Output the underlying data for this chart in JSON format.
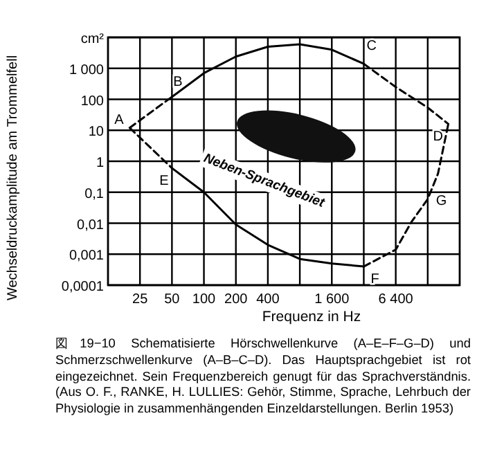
{
  "chart_data": {
    "type": "line",
    "xlabel": "Frequenz in Hz",
    "ylabel": "Wechseldruckamplitude am Trommelfell",
    "log": "xy",
    "grid": true,
    "xlim": [
      12.5,
      25600
    ],
    "xticks": [
      25,
      50,
      100,
      200,
      400,
      {
        "value": 800,
        "label": null
      },
      {
        "value": 1600,
        "label": "1 600"
      },
      {
        "value": 3200,
        "label": null
      },
      {
        "value": 6400,
        "label": "6 400"
      },
      {
        "value": 12800,
        "label": null
      }
    ],
    "ylim": [
      0.0001,
      10000
    ],
    "yticks": [
      {
        "value": 0.0001,
        "label": "0,0001"
      },
      {
        "value": 0.001,
        "label": "0,001"
      },
      {
        "value": 0.01,
        "label": "0,01"
      },
      {
        "value": 0.1,
        "label": "0,1"
      },
      1,
      10,
      100,
      {
        "value": 1000,
        "label": "1 000"
      },
      {
        "value": 10000,
        "label": "cm²"
      }
    ],
    "series": [
      {
        "color": "#000000",
        "line_style": "dashed",
        "x": [
          20,
          50
        ],
        "values": [
          12,
          120
        ]
      },
      {
        "color": "#000000",
        "line_style": "solid",
        "x": [
          50,
          100,
          200,
          400,
          800,
          1600,
          3200
        ],
        "values": [
          120,
          700,
          2400,
          5000,
          6000,
          4000,
          1400
        ]
      },
      {
        "color": "#000000",
        "line_style": "dashed",
        "x": [
          3200,
          6400,
          12800,
          20000
        ],
        "values": [
          1400,
          250,
          54,
          16
        ]
      },
      {
        "color": "#000000",
        "line_style": "dashed",
        "x": [
          20,
          50
        ],
        "values": [
          12,
          0.6
        ]
      },
      {
        "color": "#000000",
        "line_style": "solid",
        "x": [
          50,
          100,
          200,
          400,
          800,
          1600,
          3200
        ],
        "values": [
          0.6,
          0.1,
          0.009,
          0.002,
          0.0007,
          0.0005,
          0.0004
        ]
      },
      {
        "color": "#000000",
        "line_style": "dashed",
        "x": [
          3200,
          6400,
          9000,
          12800,
          16000,
          20000
        ],
        "values": [
          0.0004,
          0.0014,
          0.011,
          0.06,
          0.4,
          16
        ]
      }
    ],
    "annotations": [
      {
        "text": "A",
        "x": 20,
        "y": 12
      },
      {
        "text": "B",
        "x": 50,
        "y": 120
      },
      {
        "text": "C",
        "x": 3200,
        "y": 1400
      },
      {
        "text": "D",
        "x": 20000,
        "y": 16
      },
      {
        "text": "E",
        "x": 50,
        "y": 0.6
      },
      {
        "text": "F",
        "x": 3200,
        "y": 0.0004
      },
      {
        "text": "G",
        "x": 12800,
        "y": 0.06
      },
      "Neben-Sprachgebiet",
      "図19−10 Schematisierte Hörschwellenkurve (A–E–F–G–D) und Schmerzschwellenkurve (A–B–C–D). Das Hauptsprachgebiet ist rot eingezeichnet. Sein Frequenzbereich genugt für das Sprachverständnis. (Aus O. F., RANKE, H. LULLIES: Gehör, Stimme, Sprache, Lehrbuch der Physiologie in zusammenhängenden Einzeldarstellungen. Berlin 1953)"
    ]
  }
}
